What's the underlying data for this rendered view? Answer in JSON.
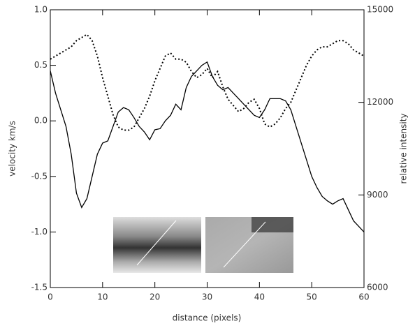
{
  "chart_data": {
    "type": "line",
    "x_label": "distance (pixels)",
    "y_label": "velocity km/s",
    "y2_label": "relative intensity",
    "x": [
      0,
      1,
      2,
      3,
      4,
      5,
      6,
      7,
      8,
      9,
      10,
      11,
      12,
      13,
      14,
      15,
      16,
      17,
      18,
      19,
      20,
      21,
      22,
      23,
      24,
      25,
      26,
      27,
      28,
      29,
      30,
      31,
      32,
      33,
      34,
      35,
      36,
      37,
      38,
      39,
      40,
      41,
      42,
      43,
      44,
      45,
      46,
      47,
      48,
      49,
      50,
      51,
      52,
      53,
      54,
      55,
      56,
      57,
      58,
      59,
      60
    ],
    "series": [
      {
        "color": "#000000",
        "style": "solid",
        "axis": "y",
        "values": [
          0.45,
          0.25,
          0.1,
          -0.05,
          -0.3,
          -0.65,
          -0.78,
          -0.7,
          -0.5,
          -0.3,
          -0.2,
          -0.18,
          -0.05,
          0.08,
          0.12,
          0.1,
          0.03,
          -0.05,
          -0.1,
          -0.17,
          -0.08,
          -0.07,
          0.0,
          0.05,
          0.15,
          0.1,
          0.3,
          0.4,
          0.45,
          0.5,
          0.53,
          0.4,
          0.32,
          0.28,
          0.3,
          0.25,
          0.2,
          0.15,
          0.1,
          0.05,
          0.03,
          0.1,
          0.2,
          0.2,
          0.2,
          0.18,
          0.1,
          -0.05,
          -0.2,
          -0.35,
          -0.5,
          -0.6,
          -0.68,
          -0.72,
          -0.75,
          -0.72,
          -0.7,
          -0.8,
          -0.9,
          -0.95,
          -1.0
        ]
      },
      {
        "color": "#000000",
        "style": "dotted",
        "axis": "y2",
        "values": [
          13400,
          13500,
          13600,
          13700,
          13800,
          14000,
          14100,
          14200,
          14000,
          13500,
          12800,
          12200,
          11600,
          11200,
          11100,
          11100,
          11200,
          11500,
          11800,
          12200,
          12700,
          13100,
          13500,
          13600,
          13400,
          13400,
          13300,
          13000,
          12800,
          12900,
          13100,
          12800,
          13000,
          12500,
          12100,
          11900,
          11700,
          11800,
          12000,
          12100,
          11800,
          11300,
          11200,
          11300,
          11500,
          11800,
          12000,
          12400,
          12800,
          13200,
          13500,
          13700,
          13800,
          13800,
          13900,
          14000,
          14000,
          13900,
          13700,
          13600,
          13500
        ]
      }
    ],
    "xlim": [
      0,
      60
    ],
    "xticks": [
      0,
      10,
      20,
      30,
      40,
      50,
      60
    ],
    "ylim": [
      -1.5,
      1.0
    ],
    "yticks": [
      -1.5,
      {
        "value": -1.0,
        "label": "-1.0"
      },
      -0.5,
      {
        "value": 0,
        "label": "0.0"
      },
      0.5,
      {
        "value": 1.0,
        "label": "1.0"
      }
    ],
    "y2lim": [
      6000,
      15000
    ],
    "y2ticks": [
      6000,
      9000,
      12000,
      15000
    ]
  }
}
